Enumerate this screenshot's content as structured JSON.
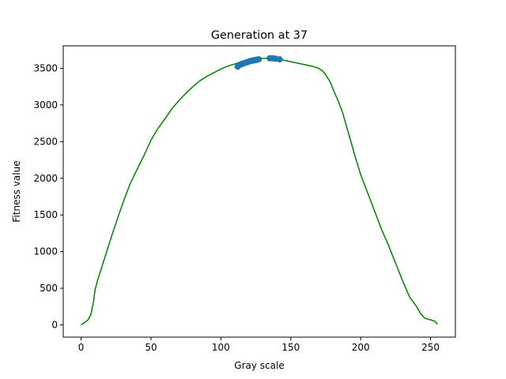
{
  "chart_data": {
    "type": "line",
    "title": "Generation at 37",
    "xlabel": "Gray scale",
    "ylabel": "Fitness value",
    "xlim": [
      -12.75,
      267.75
    ],
    "ylim": [
      -167,
      3807
    ],
    "xticks": [
      0,
      50,
      100,
      150,
      200,
      250
    ],
    "yticks": [
      0,
      500,
      1000,
      1500,
      2000,
      2500,
      3000,
      3500
    ],
    "grid": false,
    "series": [
      {
        "name": "fitness curve",
        "kind": "line",
        "color": "#008000",
        "x": [
          0,
          3,
          5,
          7,
          9,
          10,
          12,
          15,
          18,
          22,
          25,
          30,
          35,
          40,
          45,
          50,
          55,
          60,
          65,
          70,
          75,
          80,
          85,
          90,
          95,
          100,
          105,
          110,
          115,
          120,
          125,
          130,
          135,
          140,
          145,
          150,
          155,
          160,
          165,
          170,
          173,
          175,
          178,
          181,
          184,
          187,
          190,
          193,
          196,
          200,
          205,
          210,
          215,
          220,
          225,
          230,
          235,
          240,
          243,
          246,
          250,
          253,
          255
        ],
        "y": [
          0,
          40,
          70,
          140,
          330,
          480,
          620,
          800,
          980,
          1220,
          1390,
          1670,
          1920,
          2120,
          2310,
          2520,
          2680,
          2810,
          2950,
          3060,
          3160,
          3250,
          3330,
          3390,
          3440,
          3490,
          3530,
          3560,
          3590,
          3610,
          3625,
          3635,
          3640,
          3630,
          3610,
          3590,
          3570,
          3550,
          3530,
          3500,
          3460,
          3410,
          3320,
          3180,
          3050,
          2900,
          2700,
          2500,
          2300,
          2050,
          1800,
          1550,
          1300,
          1080,
          840,
          600,
          380,
          250,
          150,
          90,
          70,
          50,
          10
        ]
      },
      {
        "name": "population",
        "kind": "scatter",
        "color": "#1f77b4",
        "x": [
          112,
          113,
          114,
          115,
          116,
          117,
          118,
          119,
          120,
          121,
          122,
          123,
          124,
          125,
          126,
          127,
          135,
          137,
          139,
          142
        ],
        "y": [
          3522,
          3545,
          3550,
          3560,
          3565,
          3572,
          3580,
          3585,
          3592,
          3598,
          3602,
          3606,
          3610,
          3613,
          3618,
          3622,
          3637,
          3636,
          3630,
          3622
        ]
      }
    ]
  }
}
